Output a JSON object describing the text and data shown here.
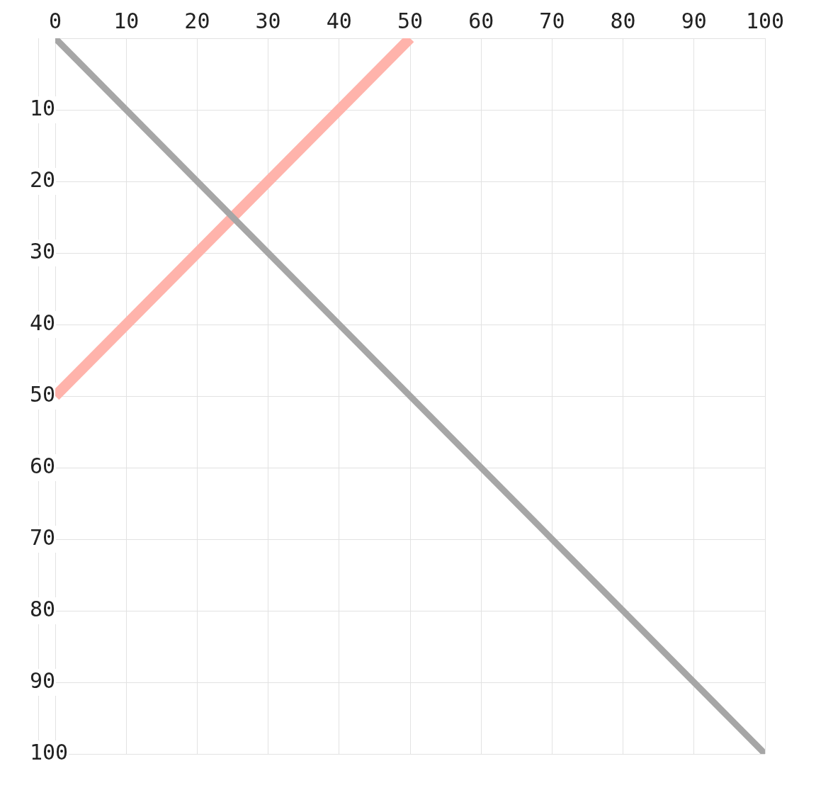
{
  "chart_data": {
    "type": "line",
    "series": [
      {
        "color": "#a6a6a6",
        "x": [
          0,
          100
        ],
        "values": [
          0,
          100
        ]
      },
      {
        "color": "#ffb3ab",
        "x": [
          0,
          50
        ],
        "values": [
          50,
          0
        ]
      }
    ],
    "xlim": [
      0,
      100
    ],
    "ylim": [
      100,
      0
    ],
    "xticks": [
      0,
      10,
      20,
      30,
      40,
      50,
      60,
      70,
      80,
      90,
      100
    ],
    "yticks": [
      {
        "value": 0,
        "label": null
      },
      10,
      20,
      30,
      40,
      50,
      60,
      70,
      80,
      90,
      100
    ],
    "grid": true,
    "legend": false,
    "marker": "none",
    "line_style": "solid"
  }
}
